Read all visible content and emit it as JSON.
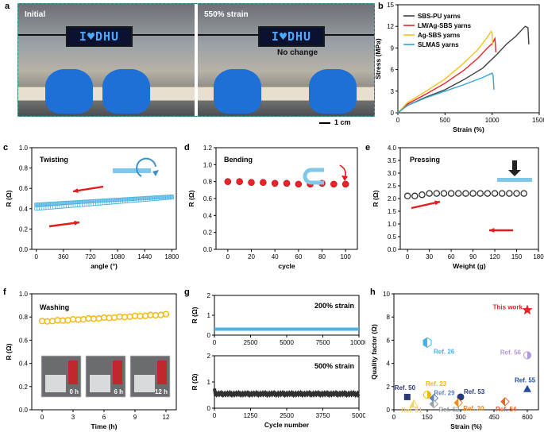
{
  "panel_letters": [
    "a",
    "b",
    "c",
    "d",
    "e",
    "f",
    "g",
    "h"
  ],
  "photo": {
    "label_left": "Initial",
    "label_right": "550% strain",
    "led_text": "I♥DHU",
    "no_change": "No change",
    "scale_bar": "1 cm"
  },
  "colors": {
    "sbs_pu": "#404040",
    "lm_ag_sbs": "#e8232a",
    "ag_sbs": "#f5c218",
    "slmas": "#2fa7d9",
    "twisting": "#4ab2e0",
    "bending": "#e8232a",
    "pressing": "#303030",
    "washing": "#f2b705",
    "cycle": "#4ab2e0",
    "cycle500": "#303030",
    "this_work": "#e8232a"
  },
  "chart_data": [
    {
      "id": "b",
      "type": "line",
      "xlabel": "Strain (%)",
      "ylabel": "Stress (MPa)",
      "xlim": [
        0,
        1500
      ],
      "ylim": [
        0,
        15
      ],
      "xticks": [
        0,
        500,
        1000,
        1500
      ],
      "yticks": [
        0,
        3,
        6,
        9,
        12,
        15
      ],
      "legend": "top-left",
      "series": [
        {
          "name": "SBS-PU yarns",
          "color": "#404040",
          "points": [
            [
              0,
              0
            ],
            [
              100,
              1.0
            ],
            [
              300,
              2.2
            ],
            [
              500,
              3.2
            ],
            [
              700,
              4.6
            ],
            [
              900,
              6.2
            ],
            [
              1050,
              8.1
            ],
            [
              1150,
              9.5
            ],
            [
              1250,
              10.6
            ],
            [
              1350,
              12.0
            ],
            [
              1380,
              11.8
            ],
            [
              1390,
              9.5
            ]
          ]
        },
        {
          "name": "LM/Ag-SBS yarns",
          "color": "#e8232a",
          "points": [
            [
              0,
              0
            ],
            [
              100,
              1.2
            ],
            [
              300,
              2.6
            ],
            [
              500,
              4.1
            ],
            [
              700,
              5.9
            ],
            [
              850,
              7.6
            ],
            [
              950,
              9.0
            ],
            [
              1000,
              9.6
            ],
            [
              1030,
              10.3
            ],
            [
              1040,
              8.4
            ]
          ]
        },
        {
          "name": "Ag-SBS yarns",
          "color": "#f5c218",
          "points": [
            [
              0,
              0
            ],
            [
              100,
              1.4
            ],
            [
              300,
              3.0
            ],
            [
              500,
              4.7
            ],
            [
              700,
              6.9
            ],
            [
              850,
              8.8
            ],
            [
              950,
              10.5
            ],
            [
              990,
              11.3
            ],
            [
              1000,
              11.1
            ],
            [
              1005,
              9.4
            ]
          ]
        },
        {
          "name": "SLMAS yarns",
          "color": "#2fa7d9",
          "points": [
            [
              0,
              0
            ],
            [
              100,
              1.0
            ],
            [
              300,
              2.1
            ],
            [
              500,
              3.0
            ],
            [
              700,
              3.9
            ],
            [
              900,
              4.9
            ],
            [
              1000,
              5.5
            ],
            [
              1010,
              5.2
            ],
            [
              1020,
              3.2
            ]
          ]
        }
      ]
    },
    {
      "id": "c",
      "type": "scatter",
      "title": "Twisting",
      "xlabel": "angle (°)",
      "ylabel": "R (Ω)",
      "xlim": [
        -60,
        1860
      ],
      "ylim": [
        0,
        1.0
      ],
      "xticks": [
        0,
        360,
        720,
        1080,
        1440,
        1800
      ],
      "yticks": [
        0.0,
        0.2,
        0.4,
        0.6,
        0.8,
        1.0
      ],
      "series": [
        {
          "name": "forward",
          "from": [
            0,
            0.4
          ],
          "to": [
            1800,
            0.51
          ]
        },
        {
          "name": "backward",
          "from": [
            0,
            0.44
          ],
          "to": [
            1800,
            0.52
          ]
        }
      ]
    },
    {
      "id": "d",
      "type": "scatter",
      "title": "Bending",
      "xlabel": "cycle",
      "ylabel": "R (Ω)",
      "xlim": [
        -10,
        110
      ],
      "ylim": [
        0,
        1.2
      ],
      "xticks": [
        0,
        20,
        40,
        60,
        80,
        100
      ],
      "yticks": [
        0.0,
        0.2,
        0.4,
        0.6,
        0.8,
        1.0,
        1.2
      ],
      "x": [
        0,
        10,
        20,
        30,
        40,
        50,
        60,
        70,
        80,
        90,
        100
      ],
      "y": [
        0.8,
        0.8,
        0.79,
        0.79,
        0.78,
        0.78,
        0.77,
        0.77,
        0.78,
        0.77,
        0.77
      ]
    },
    {
      "id": "e",
      "type": "scatter",
      "title": "Pressing",
      "xlabel": "Weight (g)",
      "ylabel": "R (Ω)",
      "xlim": [
        -10,
        180
      ],
      "ylim": [
        0,
        4.0
      ],
      "xticks": [
        0,
        30,
        60,
        90,
        120,
        150,
        180
      ],
      "yticks": [
        0.0,
        0.5,
        1.0,
        1.5,
        2.0,
        2.5,
        3.0,
        3.5,
        4.0
      ],
      "x": [
        0,
        10,
        20,
        30,
        40,
        50,
        60,
        70,
        80,
        90,
        100,
        110,
        120,
        130,
        140,
        150,
        160
      ],
      "y": [
        2.1,
        2.1,
        2.15,
        2.2,
        2.2,
        2.2,
        2.2,
        2.2,
        2.2,
        2.2,
        2.2,
        2.2,
        2.2,
        2.2,
        2.2,
        2.2,
        2.2
      ]
    },
    {
      "id": "f",
      "type": "scatter",
      "title": "Washing",
      "xlabel": "Time (h)",
      "ylabel": "R (Ω)",
      "xlim": [
        -1,
        13
      ],
      "ylim": [
        0,
        1.0
      ],
      "xticks": [
        0,
        3,
        6,
        9,
        12
      ],
      "yticks": [
        0.0,
        0.2,
        0.4,
        0.6,
        0.8,
        1.0
      ],
      "from": [
        0,
        0.76
      ],
      "to": [
        12,
        0.82
      ],
      "inset_labels": [
        "0 h",
        "6 h",
        "12 h"
      ]
    },
    {
      "id": "g-top",
      "type": "line",
      "title": "200% strain",
      "ylabel": "R (Ω)",
      "xlim": [
        0,
        10000
      ],
      "ylim": [
        0,
        2
      ],
      "xticks": [
        0,
        2500,
        5000,
        7500,
        10000
      ],
      "yticks": [
        0,
        1,
        2
      ],
      "level": 0.3
    },
    {
      "id": "g-bottom",
      "type": "line",
      "title": "500% strain",
      "xlabel": "Cycle number",
      "ylabel": "R (Ω)",
      "xlim": [
        0,
        5000
      ],
      "ylim": [
        0,
        2
      ],
      "xticks": [
        0,
        1250,
        2500,
        3750,
        5000
      ],
      "yticks": [
        0,
        1,
        2
      ],
      "level": 0.5
    },
    {
      "id": "h",
      "type": "scatter",
      "xlabel": "Strain (%)",
      "ylabel": "Quality factor (Ω)",
      "xlim": [
        0,
        650
      ],
      "ylim": [
        0,
        10
      ],
      "xticks": [
        0,
        150,
        300,
        450,
        600
      ],
      "yticks": [
        0,
        2,
        4,
        6,
        8,
        10
      ],
      "points": [
        {
          "label": "This work",
          "x": 600,
          "y": 8.6,
          "color": "#e8232a",
          "shape": "star"
        },
        {
          "label": "Ref. 26",
          "x": 150,
          "y": 5.8,
          "color": "#4ab2e0",
          "shape": "half-hex"
        },
        {
          "label": "Ref. 56",
          "x": 600,
          "y": 4.7,
          "color": "#b497d6",
          "shape": "half-circle"
        },
        {
          "label": "Ref. 55",
          "x": 600,
          "y": 1.8,
          "color": "#1f4d9a",
          "shape": "triangle"
        },
        {
          "label": "Ref. 50",
          "x": 60,
          "y": 1.1,
          "color": "#2a3a7a",
          "shape": "square"
        },
        {
          "label": "Ref. 23",
          "x": 150,
          "y": 1.3,
          "color": "#f2b705",
          "shape": "half-circle"
        },
        {
          "label": "Ref. 29",
          "x": 180,
          "y": 1.0,
          "color": "#5b7fc0",
          "shape": "half-diamond"
        },
        {
          "label": "Ref. 53",
          "x": 300,
          "y": 1.1,
          "color": "#2a3a7a",
          "shape": "circle"
        },
        {
          "label": "Ref. 51",
          "x": 90,
          "y": 0.5,
          "color": "#f2d06b",
          "shape": "half-triangle"
        },
        {
          "label": "Ref. 52",
          "x": 180,
          "y": 0.5,
          "color": "#9aa0a6",
          "shape": "half-diamond"
        },
        {
          "label": "Ref. 30",
          "x": 290,
          "y": 0.6,
          "color": "#f08a24",
          "shape": "half-diamond"
        },
        {
          "label": "Ref. 54",
          "x": 500,
          "y": 0.7,
          "color": "#e8632a",
          "shape": "half-diamond"
        }
      ]
    }
  ]
}
